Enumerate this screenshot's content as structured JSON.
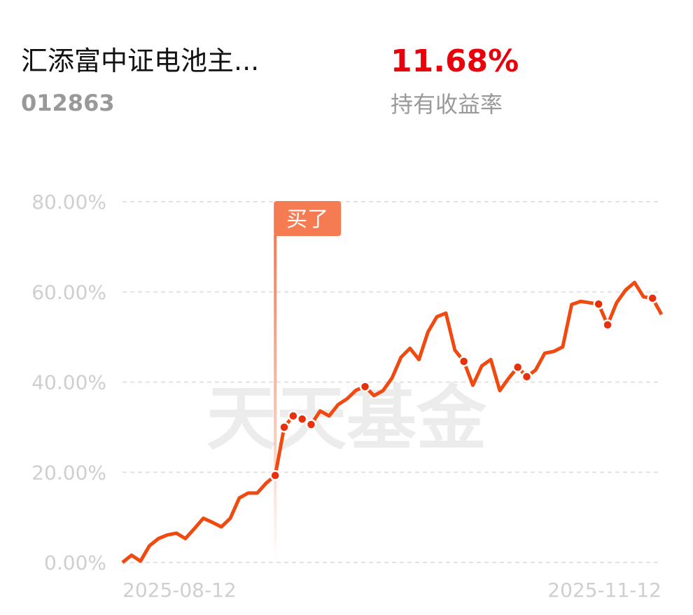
{
  "header": {
    "title": "汇添富中证电池主...",
    "code": "012863",
    "return_value": "11.68%",
    "return_label": "持有收益率"
  },
  "chart_data": {
    "type": "line",
    "categories": [
      "2025-08-12",
      null,
      null,
      null,
      null,
      null,
      null,
      null,
      null,
      null,
      null,
      null,
      null,
      null,
      null,
      null,
      null,
      null,
      null,
      null,
      null,
      null,
      null,
      null,
      null,
      null,
      null,
      null,
      null,
      null,
      null,
      null,
      null,
      null,
      null,
      null,
      null,
      null,
      null,
      null,
      null,
      null,
      null,
      null,
      null,
      null,
      null,
      null,
      null,
      null,
      null,
      null,
      null,
      null,
      null,
      null,
      null,
      null,
      null,
      null,
      "2025-11-12"
    ],
    "series": [
      {
        "color": "#f04a10",
        "values": [
          0,
          1.6,
          0.3,
          3.7,
          5.3,
          6.1,
          6.5,
          5.3,
          7.5,
          9.8,
          8.9,
          7.9,
          9.8,
          14.3,
          15.4,
          15.4,
          17.6,
          19.3,
          30.0,
          32.5,
          31.8,
          30.6,
          33.6,
          32.5,
          35.0,
          36.3,
          38.2,
          39.0,
          37.0,
          38.1,
          40.9,
          45.5,
          47.5,
          45.0,
          51.1,
          54.5,
          55.3,
          47.1,
          44.6,
          39.3,
          43.6,
          45.0,
          38.1,
          40.9,
          43.3,
          41.2,
          42.7,
          46.4,
          46.8,
          47.8,
          57.2,
          57.9,
          57.6,
          57.3,
          52.7,
          57.6,
          60.4,
          62.1,
          58.9,
          58.6,
          55.0
        ]
      }
    ],
    "ylim": [
      0,
      80
    ],
    "yticks": [
      {
        "value": 0,
        "label": "0.00%"
      },
      {
        "value": 20,
        "label": "20.00%"
      },
      {
        "value": 40,
        "label": "40.00%"
      },
      {
        "value": 60,
        "label": "60.00%"
      },
      {
        "value": 80,
        "label": "80.00%"
      }
    ],
    "grid": true,
    "annotation": "买了",
    "watermark": "天天基金"
  }
}
